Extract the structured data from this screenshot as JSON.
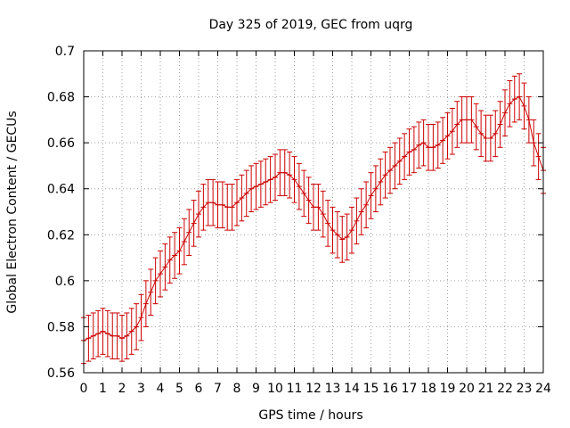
{
  "chart_data": {
    "type": "line",
    "title": "Day 325 of 2019, GEC from uqrg",
    "xlabel": "GPS time / hours",
    "ylabel": "Global Electron Content / GECUs",
    "xlim": [
      0,
      24
    ],
    "ylim": [
      0.56,
      0.7
    ],
    "xticks": [
      "0",
      "1",
      "2",
      "3",
      "4",
      "5",
      "6",
      "7",
      "8",
      "9",
      "10",
      "11",
      "12",
      "13",
      "14",
      "15",
      "16",
      "17",
      "18",
      "19",
      "20",
      "21",
      "22",
      "23",
      "24"
    ],
    "yticks": [
      "0.56",
      "0.58",
      "0.6",
      "0.62",
      "0.64",
      "0.66",
      "0.68",
      "0.7"
    ],
    "grid": true,
    "error_bars": true,
    "series_color": "#cc0000",
    "series": [
      {
        "x": [
          0,
          0.25,
          0.5,
          0.75,
          1,
          1.25,
          1.5,
          1.75,
          2,
          2.25,
          2.5,
          2.75,
          3,
          3.25,
          3.5,
          3.75,
          4,
          4.25,
          4.5,
          4.75,
          5,
          5.25,
          5.5,
          5.75,
          6,
          6.25,
          6.5,
          6.75,
          7,
          7.25,
          7.5,
          7.75,
          8,
          8.25,
          8.5,
          8.75,
          9,
          9.25,
          9.5,
          9.75,
          10,
          10.25,
          10.5,
          10.75,
          11,
          11.25,
          11.5,
          11.75,
          12,
          12.25,
          12.5,
          12.75,
          13,
          13.25,
          13.5,
          13.75,
          14,
          14.25,
          14.5,
          14.75,
          15,
          15.25,
          15.5,
          15.75,
          16,
          16.25,
          16.5,
          16.75,
          17,
          17.25,
          17.5,
          17.75,
          18,
          18.25,
          18.5,
          18.75,
          19,
          19.25,
          19.5,
          19.75,
          20,
          20.25,
          20.5,
          20.75,
          21,
          21.25,
          21.5,
          21.75,
          22,
          22.25,
          22.5,
          22.75,
          23,
          23.25,
          23.5,
          23.75,
          24
        ],
        "y": [
          0.574,
          0.575,
          0.576,
          0.577,
          0.578,
          0.577,
          0.576,
          0.576,
          0.575,
          0.576,
          0.578,
          0.58,
          0.584,
          0.59,
          0.595,
          0.6,
          0.603,
          0.606,
          0.609,
          0.611,
          0.613,
          0.617,
          0.621,
          0.625,
          0.629,
          0.632,
          0.634,
          0.634,
          0.633,
          0.633,
          0.632,
          0.632,
          0.634,
          0.636,
          0.638,
          0.64,
          0.641,
          0.642,
          0.643,
          0.644,
          0.645,
          0.647,
          0.647,
          0.646,
          0.644,
          0.641,
          0.638,
          0.635,
          0.632,
          0.632,
          0.629,
          0.625,
          0.622,
          0.62,
          0.618,
          0.619,
          0.622,
          0.626,
          0.63,
          0.633,
          0.637,
          0.64,
          0.643,
          0.646,
          0.648,
          0.65,
          0.652,
          0.654,
          0.656,
          0.657,
          0.659,
          0.66,
          0.658,
          0.658,
          0.659,
          0.661,
          0.663,
          0.665,
          0.668,
          0.67,
          0.67,
          0.67,
          0.667,
          0.664,
          0.662,
          0.662,
          0.664,
          0.668,
          0.673,
          0.677,
          0.679,
          0.68,
          0.676,
          0.67,
          0.66,
          0.654,
          0.648
        ],
        "err": [
          0.01,
          0.01,
          0.01,
          0.01,
          0.01,
          0.01,
          0.01,
          0.01,
          0.01,
          0.01,
          0.01,
          0.01,
          0.01,
          0.01,
          0.01,
          0.01,
          0.01,
          0.01,
          0.01,
          0.01,
          0.01,
          0.01,
          0.01,
          0.01,
          0.01,
          0.01,
          0.01,
          0.01,
          0.01,
          0.01,
          0.01,
          0.01,
          0.01,
          0.01,
          0.01,
          0.01,
          0.01,
          0.01,
          0.01,
          0.01,
          0.01,
          0.01,
          0.01,
          0.01,
          0.01,
          0.01,
          0.01,
          0.01,
          0.01,
          0.01,
          0.01,
          0.01,
          0.01,
          0.01,
          0.01,
          0.01,
          0.01,
          0.01,
          0.01,
          0.01,
          0.01,
          0.01,
          0.01,
          0.01,
          0.01,
          0.01,
          0.01,
          0.01,
          0.01,
          0.01,
          0.01,
          0.01,
          0.01,
          0.01,
          0.01,
          0.01,
          0.01,
          0.01,
          0.01,
          0.01,
          0.01,
          0.01,
          0.01,
          0.01,
          0.01,
          0.01,
          0.01,
          0.01,
          0.01,
          0.01,
          0.01,
          0.01,
          0.01,
          0.01,
          0.01,
          0.01,
          0.01
        ]
      }
    ]
  }
}
